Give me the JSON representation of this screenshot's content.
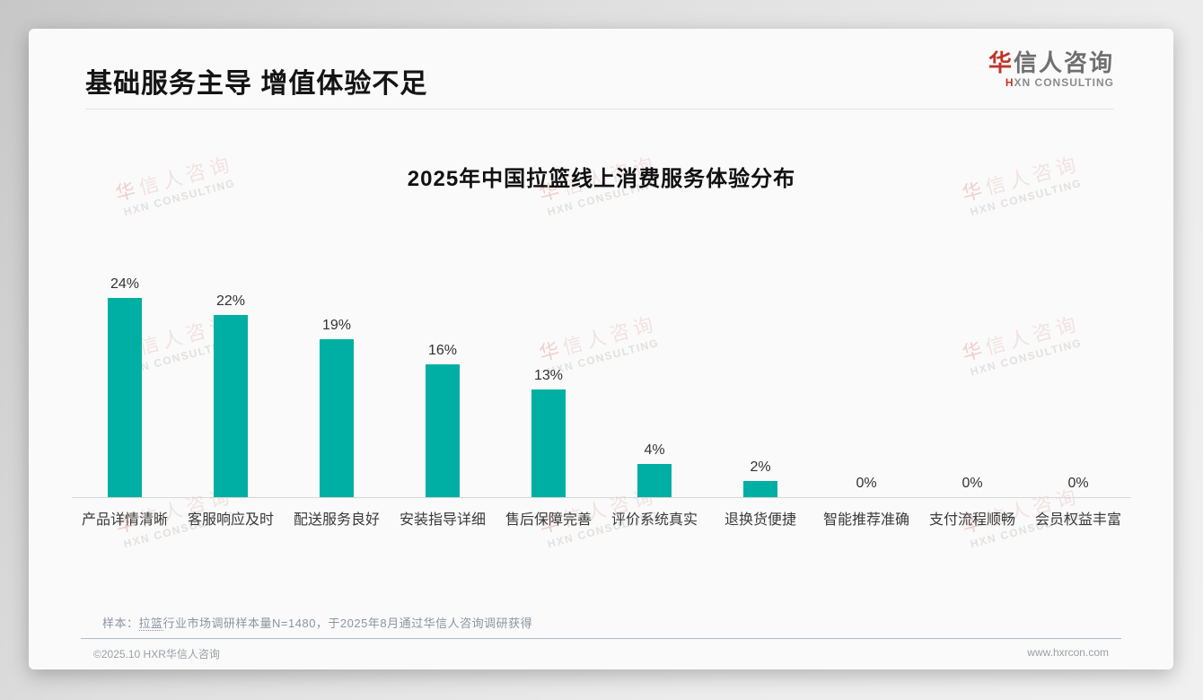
{
  "page": {
    "title": "基础服务主导 增值体验不足"
  },
  "logo": {
    "cn_first": "华",
    "cn_rest": "信人咨询",
    "en_first": "H",
    "en_rest": "XN CONSULTING"
  },
  "watermark": {
    "cn_first": "华",
    "cn_rest": "信人咨询",
    "en": "HXN CONSULTING"
  },
  "chart_data": {
    "type": "bar",
    "title": "2025年中国拉篮线上消费服务体验分布",
    "categories": [
      "产品详情清晰",
      "客服响应及时",
      "配送服务良好",
      "安装指导详细",
      "售后保障完善",
      "评价系统真实",
      "退换货便捷",
      "智能推荐准确",
      "支付流程顺畅",
      "会员权益丰富"
    ],
    "values": [
      24,
      22,
      19,
      16,
      13,
      4,
      2,
      0,
      0,
      0
    ],
    "value_labels": [
      "24%",
      "22%",
      "19%",
      "16%",
      "13%",
      "4%",
      "2%",
      "0%",
      "0%",
      "0%"
    ],
    "bar_color": "#00afa3",
    "xlabel": "",
    "ylabel": "",
    "ylim": [
      0,
      26
    ],
    "grid": false,
    "legend": false
  },
  "note": {
    "prefix": "样本：",
    "underlined": "拉篮",
    "rest": "行业市场调研样本量N=1480，于2025年8月通过华信人咨询调研获得"
  },
  "footer": {
    "left": "©2025.10 HXR华信人咨询",
    "right": "www.hxrcon.com"
  }
}
